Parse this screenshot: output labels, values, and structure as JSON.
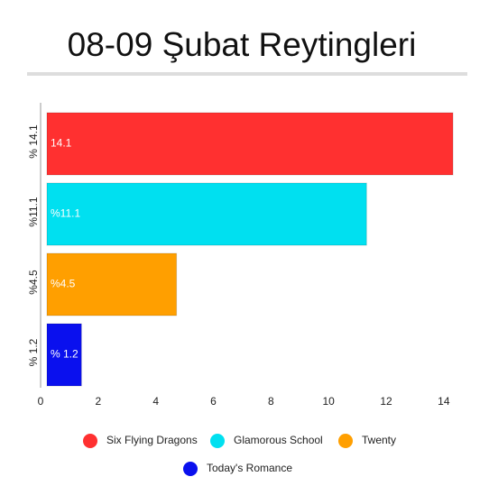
{
  "chart_data": {
    "type": "hbar",
    "title": "08-09 Şubat Reytingleri",
    "categories": [
      "% 14.1",
      "%11.1",
      "%4.5",
      "% 1.2"
    ],
    "series": [
      {
        "name": "Six Flying Dragons",
        "color": "#ff3030",
        "values": [
          14.1,
          null,
          null,
          null
        ],
        "value_labels": [
          "14.1",
          null,
          null,
          null
        ]
      },
      {
        "name": "Glamorous School",
        "color": "#00e0f0",
        "values": [
          null,
          11.1,
          null,
          null
        ],
        "value_labels": [
          null,
          "%11.1",
          null,
          null
        ]
      },
      {
        "name": "Twenty",
        "color": "#ff9f00",
        "values": [
          null,
          null,
          4.5,
          null
        ],
        "value_labels": [
          null,
          null,
          "%4.5",
          null
        ]
      },
      {
        "name": "Today's Romance",
        "color": "#0a10ee",
        "values": [
          null,
          null,
          null,
          1.2
        ],
        "value_labels": [
          null,
          null,
          null,
          "% 1.2"
        ]
      }
    ],
    "xlim": [
      0,
      14.6
    ],
    "xticks": [
      0,
      2,
      4,
      6,
      8,
      10,
      12,
      14
    ]
  }
}
